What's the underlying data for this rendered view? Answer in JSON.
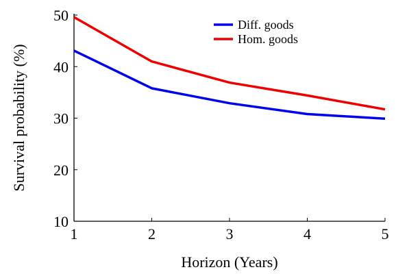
{
  "chart_data": {
    "type": "line",
    "xlabel": "Horizon (Years)",
    "ylabel": "Survival probability (%)",
    "x": [
      1,
      2,
      3,
      4,
      5
    ],
    "series": [
      {
        "name": "Diff. goods",
        "color": "#0000ee",
        "values": [
          43.1,
          35.8,
          32.9,
          30.8,
          29.9
        ]
      },
      {
        "name": "Hom. goods",
        "color": "#ee0000",
        "values": [
          49.6,
          41.0,
          36.9,
          34.4,
          31.7
        ]
      }
    ],
    "xlim": [
      1,
      5
    ],
    "xticks": [
      1,
      2,
      3,
      4,
      5
    ],
    "ylim": [
      10,
      50
    ],
    "yticks": [
      10,
      20,
      30,
      40,
      50
    ],
    "legend": "upper right"
  }
}
